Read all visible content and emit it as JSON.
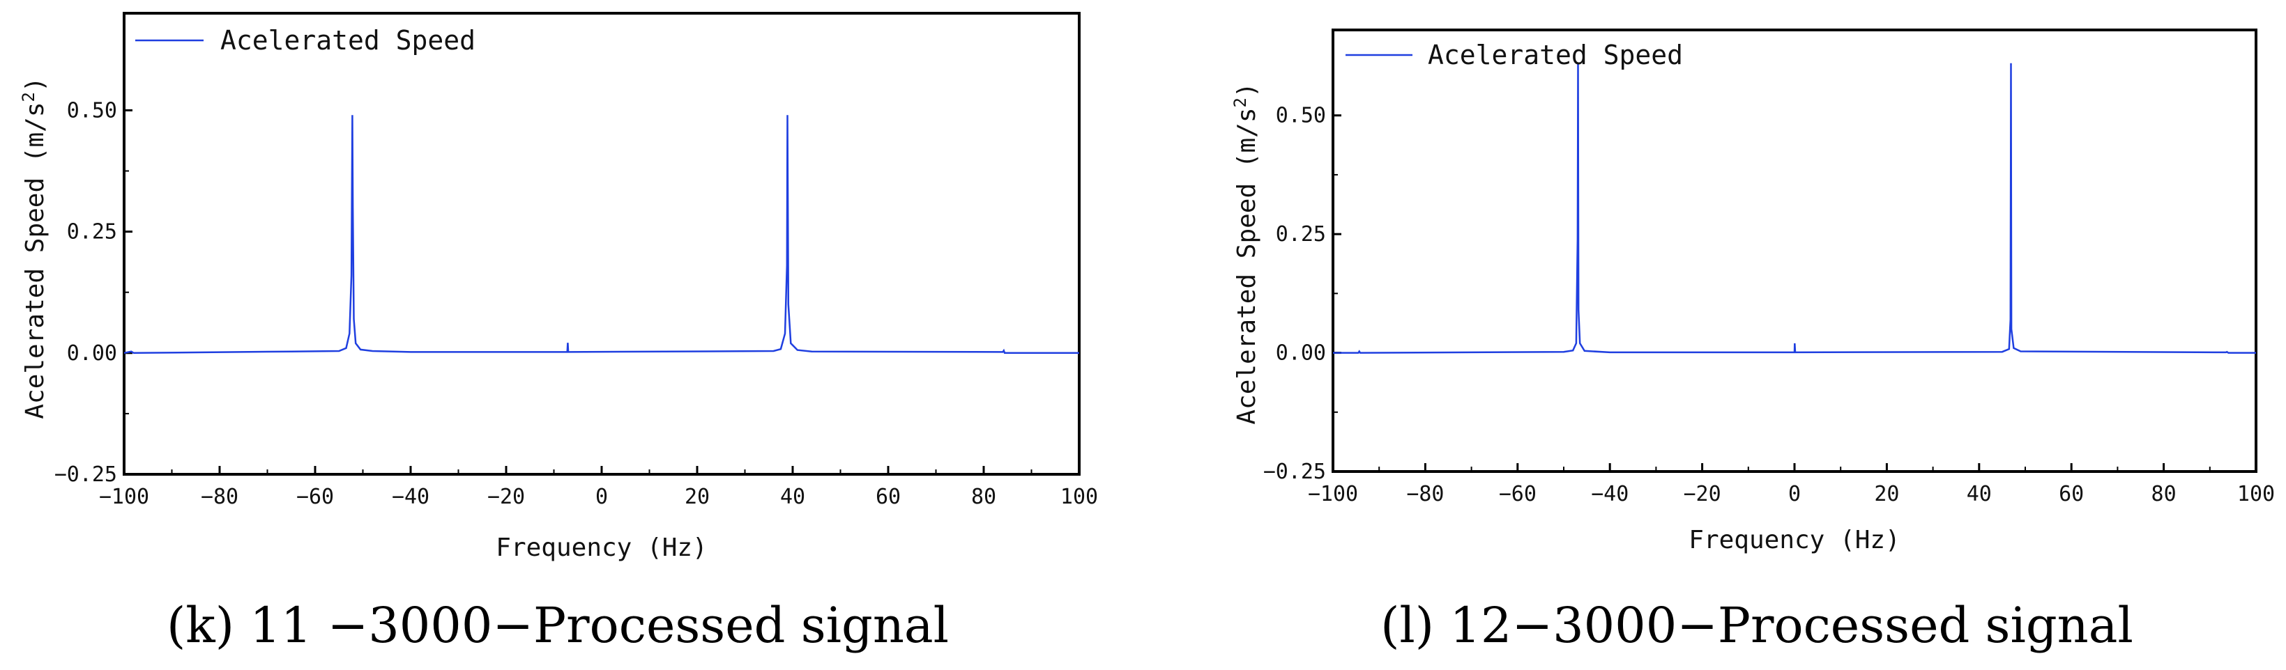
{
  "chart_data": [
    {
      "type": "line",
      "caption": "(k) 11 −3000−Processed signal",
      "xlabel": "Frequency (Hz)",
      "ylabel": "Acelerated Speed (m/s",
      "ylabel_sup": "2",
      "ylabel_close": ")",
      "xlim": [
        -100,
        100
      ],
      "ylim": [
        -0.25,
        0.7
      ],
      "xticks": [
        -100,
        -80,
        -60,
        -40,
        -20,
        0,
        20,
        40,
        60,
        80,
        100
      ],
      "xtick_labels": [
        "−100",
        "−80",
        "−60",
        "−40",
        "−20",
        "0",
        "20",
        "40",
        "60",
        "80",
        "100"
      ],
      "yticks": [
        -0.25,
        0.0,
        0.25,
        0.5
      ],
      "ytick_labels": [
        "−0.25",
        "0.00",
        "0.25",
        "0.50"
      ],
      "legend": "top-left",
      "color": "#1f3fe0",
      "series": [
        {
          "name": "Acelerated Speed",
          "points": [
            [
              -100,
              0.0
            ],
            [
              -98.5,
              0.003
            ],
            [
              -98,
              0.0
            ],
            [
              -65,
              0.003
            ],
            [
              -55,
              0.004
            ],
            [
              -53.5,
              0.01
            ],
            [
              -52.8,
              0.04
            ],
            [
              -52.4,
              0.16
            ],
            [
              -52.2,
              0.49
            ],
            [
              -52.1,
              0.3
            ],
            [
              -51.9,
              0.07
            ],
            [
              -51.5,
              0.02
            ],
            [
              -50.5,
              0.007
            ],
            [
              -48,
              0.004
            ],
            [
              -40,
              0.002
            ],
            [
              -7.2,
              0.002
            ],
            [
              -7.1,
              0.021
            ],
            [
              -7.0,
              0.002
            ],
            [
              36,
              0.004
            ],
            [
              37.5,
              0.008
            ],
            [
              38.4,
              0.04
            ],
            [
              38.8,
              0.18
            ],
            [
              38.9,
              0.49
            ],
            [
              39.1,
              0.1
            ],
            [
              39.6,
              0.02
            ],
            [
              41,
              0.006
            ],
            [
              44,
              0.003
            ],
            [
              84,
              0.002
            ],
            [
              84.2,
              0.005
            ],
            [
              84.4,
              0.0
            ],
            [
              100,
              0.0
            ]
          ]
        }
      ]
    },
    {
      "type": "line",
      "caption": "(l) 12−3000−Processed signal",
      "xlabel": "Frequency (Hz)",
      "ylabel": "Acelerated Speed (m/s",
      "ylabel_sup": "2",
      "ylabel_close": ")",
      "xlim": [
        -100,
        100
      ],
      "ylim": [
        -0.25,
        0.68
      ],
      "xticks": [
        -100,
        -80,
        -60,
        -40,
        -20,
        0,
        20,
        40,
        60,
        80,
        100
      ],
      "xtick_labels": [
        "−100",
        "−80",
        "−60",
        "−40",
        "−20",
        "0",
        "20",
        "40",
        "60",
        "80",
        "100"
      ],
      "yticks": [
        -0.25,
        0.0,
        0.25,
        0.5
      ],
      "ytick_labels": [
        "−0.25",
        "0.00",
        "0.25",
        "0.50"
      ],
      "legend": "top-left",
      "color": "#1f3fe0",
      "series": [
        {
          "name": "Acelerated Speed",
          "points": [
            [
              -100,
              0.0
            ],
            [
              -94.5,
              0.0
            ],
            [
              -94.3,
              0.003
            ],
            [
              -94.1,
              0.0
            ],
            [
              -50,
              0.002
            ],
            [
              -48,
              0.005
            ],
            [
              -47.3,
              0.02
            ],
            [
              -47.0,
              0.24
            ],
            [
              -46.9,
              0.61
            ],
            [
              -46.8,
              0.09
            ],
            [
              -46.5,
              0.02
            ],
            [
              -45.5,
              0.004
            ],
            [
              -40,
              0.001
            ],
            [
              0,
              0.001
            ],
            [
              0.05,
              0.02
            ],
            [
              0.15,
              0.001
            ],
            [
              45,
              0.002
            ],
            [
              46.5,
              0.008
            ],
            [
              46.8,
              0.07
            ],
            [
              46.9,
              0.61
            ],
            [
              47.0,
              0.05
            ],
            [
              47.5,
              0.01
            ],
            [
              49,
              0.003
            ],
            [
              93.5,
              0.001
            ],
            [
              93.7,
              0.002
            ],
            [
              94,
              0.0
            ],
            [
              100,
              0.0
            ]
          ]
        }
      ]
    }
  ]
}
